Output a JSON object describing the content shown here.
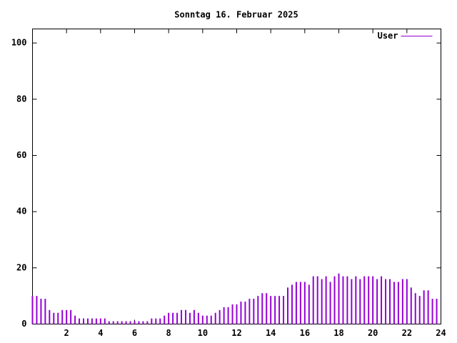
{
  "chart_data": {
    "type": "impulses",
    "title": "Sonntag 16. Februar 2025",
    "x": [
      0,
      0.25,
      0.5,
      0.75,
      1,
      1.25,
      1.5,
      1.75,
      2,
      2.25,
      2.5,
      2.75,
      3,
      3.25,
      3.5,
      3.75,
      4,
      4.25,
      4.5,
      4.75,
      5,
      5.25,
      5.5,
      5.75,
      6,
      6.25,
      6.5,
      6.75,
      7,
      7.25,
      7.5,
      7.75,
      8,
      8.25,
      8.5,
      8.75,
      9,
      9.25,
      9.5,
      9.75,
      10,
      10.25,
      10.5,
      10.75,
      11,
      11.25,
      11.5,
      11.75,
      12,
      12.25,
      12.5,
      12.75,
      13,
      13.25,
      13.5,
      13.75,
      14,
      14.25,
      14.5,
      14.75,
      15,
      15.25,
      15.5,
      15.75,
      16,
      16.25,
      16.5,
      16.75,
      17,
      17.25,
      17.5,
      17.75,
      18,
      18.25,
      18.5,
      18.75,
      19,
      19.25,
      19.5,
      19.75,
      20,
      20.25,
      20.5,
      20.75,
      21,
      21.25,
      21.5,
      21.75,
      22,
      22.25,
      22.5,
      22.75,
      23,
      23.25,
      23.5,
      23.75
    ],
    "series": [
      {
        "name": "User",
        "color": "#9400d3",
        "values": [
          10,
          10,
          9,
          9,
          5,
          4,
          4,
          5,
          5,
          5,
          3,
          2,
          2,
          2,
          2,
          2,
          2,
          2,
          1,
          1,
          1,
          1,
          1,
          1,
          1,
          1,
          1,
          1,
          2,
          2,
          2,
          3,
          4,
          4,
          4,
          5,
          5,
          4,
          5,
          4,
          3,
          3,
          3,
          4,
          5,
          6,
          6,
          7,
          7,
          8,
          8,
          9,
          9,
          10,
          11,
          11,
          10,
          10,
          10,
          10,
          13,
          14,
          15,
          15,
          15,
          14,
          17,
          17,
          16,
          17,
          15,
          17,
          18,
          17,
          17,
          16,
          17,
          16,
          17,
          17,
          17,
          16,
          17,
          16,
          16,
          15,
          15,
          16,
          16,
          13,
          11,
          10,
          12,
          12,
          9,
          9
        ]
      }
    ],
    "xlim": [
      0,
      24
    ],
    "xticks": [
      2,
      4,
      6,
      8,
      10,
      12,
      14,
      16,
      18,
      20,
      22,
      24
    ],
    "ylim": [
      0,
      105
    ],
    "yticks": [
      0,
      20,
      40,
      60,
      80,
      100
    ],
    "legend": "top right"
  }
}
